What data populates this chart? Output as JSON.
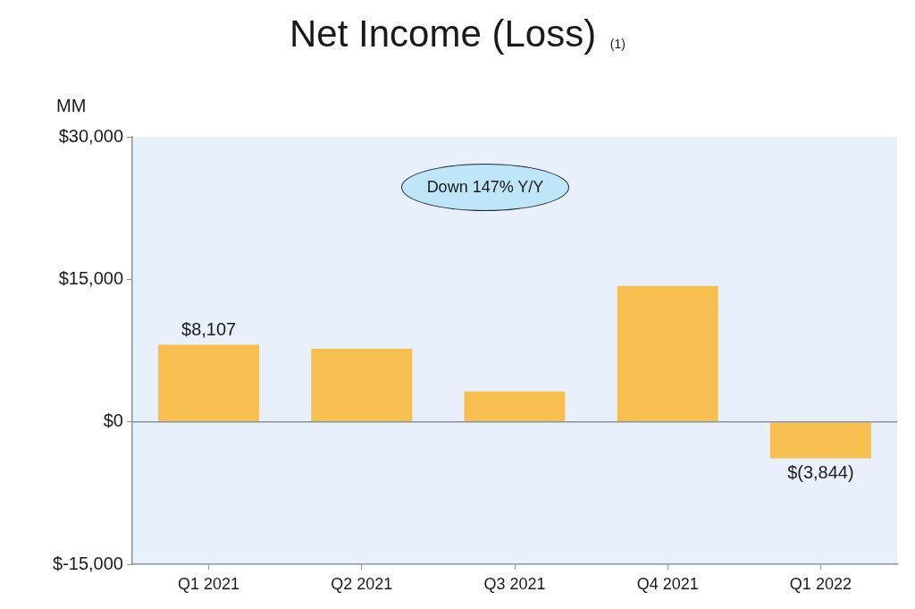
{
  "chart_data": {
    "type": "bar",
    "title": "Net Income (Loss) $_{(1)}$",
    "ylabel": "MM",
    "categories": [
      "Q1 2021",
      "Q2 2021",
      "Q3 2021",
      "Q4 2021",
      "Q1 2022"
    ],
    "values": [
      8107,
      7700,
      3200,
      14300,
      -3844
    ],
    "color": "#f6bf4f",
    "value_labels": [
      "$8,107",
      null,
      null,
      null,
      "$(3,844)"
    ],
    "ylim": [
      -15000,
      30000
    ],
    "yticks": [
      {
        "value": -15000,
        "label": "$-15,000"
      },
      {
        "value": 0,
        "label": "$0"
      },
      {
        "value": 15000,
        "label": "$15,000"
      },
      {
        "value": 30000,
        "label": "$30,000"
      }
    ],
    "ref_lines": [
      {
        "axis": "y",
        "value": 0,
        "color": "#8a939c"
      }
    ],
    "annotations": [
      "Down 147% Y/Y"
    ]
  }
}
